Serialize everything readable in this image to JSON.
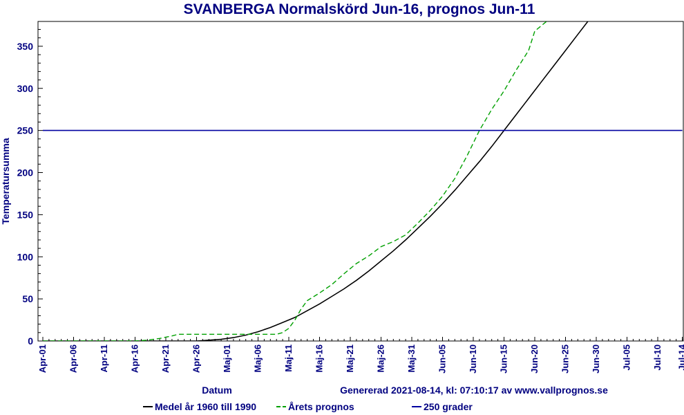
{
  "chart_data": {
    "type": "line",
    "title": "SVANBERGA Normalskörd Jun-16, prognos Jun-11",
    "xlabel": "Datum",
    "ylabel": "Temperatursumma",
    "footer": "Genererad 2021-08-14, kl: 07:10:17 av www.vallprognos.se",
    "x_ticks": [
      "Apr-01",
      "Apr-06",
      "Apr-11",
      "Apr-16",
      "Apr-21",
      "Apr-26",
      "Maj-01",
      "Maj-06",
      "Maj-11",
      "Maj-16",
      "Maj-21",
      "Maj-26",
      "Maj-31",
      "Jun-05",
      "Jun-10",
      "Jun-15",
      "Jun-20",
      "Jun-25",
      "Jun-30",
      "Jul-05",
      "Jul-10",
      "Jul-14"
    ],
    "y_ticks": [
      0,
      50,
      100,
      150,
      200,
      250,
      300,
      350
    ],
    "ylim": [
      0,
      380
    ],
    "grid": false,
    "legend_position": "bottom",
    "series": [
      {
        "name": "Medel år 1960 till 1990",
        "color": "#000000",
        "style": "solid",
        "points": [
          [
            "Apr-01",
            0
          ],
          [
            "Apr-26",
            0
          ],
          [
            "Apr-28",
            1
          ],
          [
            "Apr-30",
            2
          ],
          [
            "Maj-02",
            4
          ],
          [
            "Maj-04",
            7
          ],
          [
            "Maj-06",
            11
          ],
          [
            "Maj-08",
            16
          ],
          [
            "Maj-10",
            22
          ],
          [
            "Maj-12",
            28
          ],
          [
            "Maj-14",
            36
          ],
          [
            "Maj-16",
            44
          ],
          [
            "Maj-18",
            53
          ],
          [
            "Maj-20",
            62
          ],
          [
            "Maj-22",
            72
          ],
          [
            "Maj-24",
            83
          ],
          [
            "Maj-26",
            95
          ],
          [
            "Maj-28",
            107
          ],
          [
            "Maj-30",
            120
          ],
          [
            "Jun-01",
            134
          ],
          [
            "Jun-03",
            148
          ],
          [
            "Jun-05",
            163
          ],
          [
            "Jun-07",
            179
          ],
          [
            "Jun-09",
            196
          ],
          [
            "Jun-11",
            213
          ],
          [
            "Jun-13",
            231
          ],
          [
            "Jun-15",
            250
          ],
          [
            "Jun-17",
            269
          ],
          [
            "Jun-19",
            288
          ],
          [
            "Jun-21",
            307
          ],
          [
            "Jun-23",
            326
          ],
          [
            "Jun-25",
            345
          ],
          [
            "Jun-27",
            364
          ],
          [
            "Jun-29",
            383
          ]
        ]
      },
      {
        "name": "Årets prognos",
        "color": "#00a000",
        "style": "dashed",
        "points": [
          [
            "Apr-01",
            0
          ],
          [
            "Apr-16",
            0
          ],
          [
            "Apr-18",
            1
          ],
          [
            "Apr-20",
            3
          ],
          [
            "Apr-22",
            6
          ],
          [
            "Apr-23",
            8
          ],
          [
            "Apr-26",
            8
          ],
          [
            "Maj-01",
            8
          ],
          [
            "Maj-06",
            8
          ],
          [
            "Maj-09",
            8
          ],
          [
            "Maj-10",
            10
          ],
          [
            "Maj-11",
            15
          ],
          [
            "Maj-12",
            25
          ],
          [
            "Maj-13",
            38
          ],
          [
            "Maj-14",
            48
          ],
          [
            "Maj-16",
            57
          ],
          [
            "Maj-18",
            67
          ],
          [
            "Maj-20",
            80
          ],
          [
            "Maj-22",
            92
          ],
          [
            "Maj-24",
            101
          ],
          [
            "Maj-26",
            112
          ],
          [
            "Maj-28",
            118
          ],
          [
            "Maj-30",
            126
          ],
          [
            "Jun-01",
            140
          ],
          [
            "Jun-03",
            155
          ],
          [
            "Jun-05",
            172
          ],
          [
            "Jun-07",
            193
          ],
          [
            "Jun-09",
            220
          ],
          [
            "Jun-11",
            250
          ],
          [
            "Jun-13",
            275
          ],
          [
            "Jun-15",
            297
          ],
          [
            "Jun-17",
            322
          ],
          [
            "Jun-19",
            345
          ],
          [
            "Jun-20",
            368
          ],
          [
            "Jun-22",
            380
          ]
        ]
      },
      {
        "name": "250 grader",
        "color": "#0000a0",
        "style": "solid",
        "points": [
          [
            "Apr-01",
            250
          ],
          [
            "Jul-14",
            250
          ]
        ]
      }
    ]
  }
}
